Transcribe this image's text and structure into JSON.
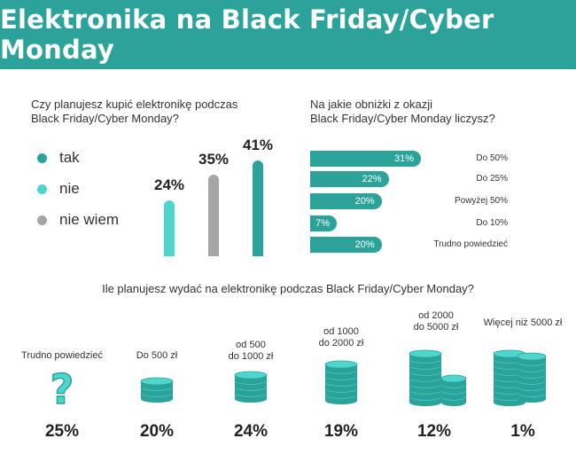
{
  "title": "Elektronika na Black Friday/Cyber Monday",
  "colors": {
    "teal": "#2ba39a",
    "light_teal": "#4fd6cc",
    "gray": "#a5a5a5",
    "coin_top": "#4fd6cc",
    "coin_side": "#2ba39a"
  },
  "chart_data": [
    {
      "type": "bar",
      "title": "Czy planujesz kupić elektronikę podczas Black Friday/Cyber Monday?",
      "categories": [
        "nie",
        "nie wiem",
        "tak"
      ],
      "values": [
        24,
        35,
        41
      ],
      "labels": [
        "24%",
        "35%",
        "41%"
      ],
      "legend": [
        "tak",
        "nie",
        "nie wiem"
      ],
      "ylim": [
        0,
        50
      ]
    },
    {
      "type": "bar",
      "orientation": "horizontal",
      "title": "Na jakie obniżki z okazji Black Friday/Cyber Monday liczysz?",
      "categories": [
        "Do 50%",
        "Do 25%",
        "Powyżej 50%",
        "Do 10%",
        "Trudno powiedzieć"
      ],
      "values": [
        31,
        22,
        20,
        7,
        20
      ],
      "labels": [
        "31%",
        "22%",
        "20%",
        "7%",
        "20%"
      ],
      "xlim": [
        0,
        35
      ]
    },
    {
      "type": "bar",
      "title": "Ile planujesz wydać na elektronikę podczas Black Friday/Cyber Monday?",
      "categories": [
        "Trudno powiedzieć",
        "Do 500 zł",
        "od 500 do 1000 zł",
        "od 1000 do 2000 zł",
        "od 2000 do 5000 zł",
        "Więcej niż 5000 zł"
      ],
      "values": [
        25,
        20,
        24,
        19,
        12,
        1
      ],
      "labels": [
        "25%",
        "20%",
        "24%",
        "19%",
        "12%",
        "1%"
      ]
    }
  ],
  "text": {
    "q1_line1": "Czy planujesz kupić elektronikę podczas",
    "q1_line2": "Black Friday/Cyber Monday?",
    "q2_line1": "Na jakie obniżki z okazji",
    "q2_line2": "Black Friday/Cyber Monday liczysz?",
    "q3": "Ile planujesz wydać na elektronikę podczas Black Friday/Cyber Monday?",
    "legend_tak": "tak",
    "legend_nie": "nie",
    "legend_niewiem": "nie wiem",
    "spend_cat_0": "Trudno powiedzieć",
    "spend_cat_1": "Do 500 zł",
    "spend_cat_2a": "od 500",
    "spend_cat_2b": "do 1000 zł",
    "spend_cat_3a": "od 1000",
    "spend_cat_3b": "do 2000 zł",
    "spend_cat_4a": "od 2000",
    "spend_cat_4b": "do 5000 zł",
    "spend_cat_5": "Więcej niż 5000 zł",
    "question_mark": "?"
  }
}
